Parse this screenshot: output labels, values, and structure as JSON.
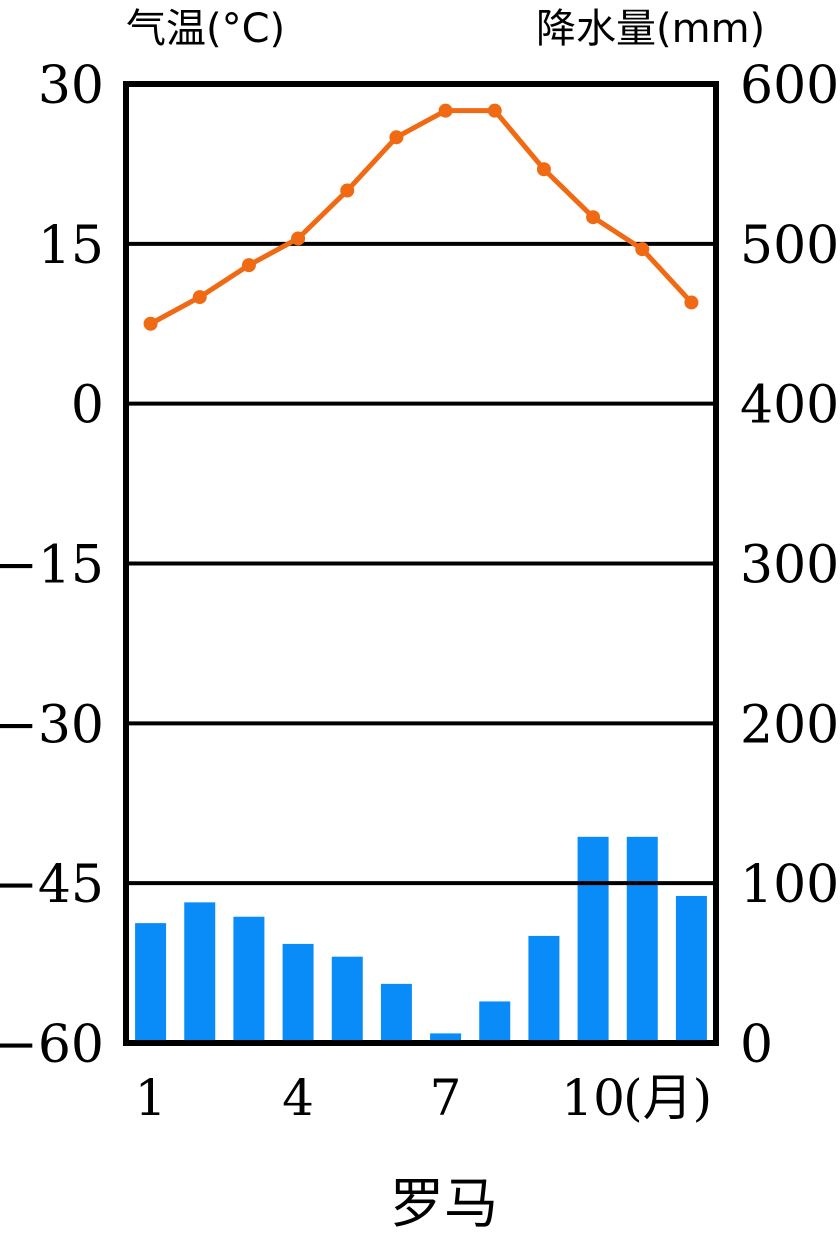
{
  "chart_data": {
    "type": "bar+line",
    "title": "罗马",
    "left_axis_label": "气温(°C)",
    "right_axis_label": "降水量(mm)",
    "x_axis_suffix": "(月)",
    "months": [
      1,
      2,
      3,
      4,
      5,
      6,
      7,
      8,
      9,
      10,
      11,
      12
    ],
    "x_tick_labels": [
      {
        "month": 1,
        "label": "1"
      },
      {
        "month": 4,
        "label": "4"
      },
      {
        "month": 7,
        "label": "7"
      },
      {
        "month": 10,
        "label": "10"
      }
    ],
    "temperature": {
      "unit": "°C",
      "ylim": [
        -60,
        30
      ],
      "ticks": [
        "30",
        "15",
        "0",
        "−15",
        "−30",
        "−45",
        "−60"
      ],
      "tick_values": [
        30,
        15,
        0,
        -15,
        -30,
        -45,
        -60
      ],
      "values": [
        7.5,
        10.0,
        13.0,
        15.5,
        20.0,
        25.0,
        27.5,
        27.5,
        22.0,
        17.5,
        14.5,
        9.5
      ],
      "color": "#F06A14"
    },
    "precipitation": {
      "unit": "mm",
      "ylim": [
        0,
        600
      ],
      "ticks": [
        "600",
        "500",
        "400",
        "300",
        "200",
        "100",
        "0"
      ],
      "tick_values": [
        600,
        500,
        400,
        300,
        200,
        100,
        0
      ],
      "values": [
        75,
        88,
        79,
        62,
        54,
        37,
        6,
        26,
        67,
        129,
        129,
        92
      ],
      "color": "#0A8CF8"
    },
    "grid": true
  }
}
